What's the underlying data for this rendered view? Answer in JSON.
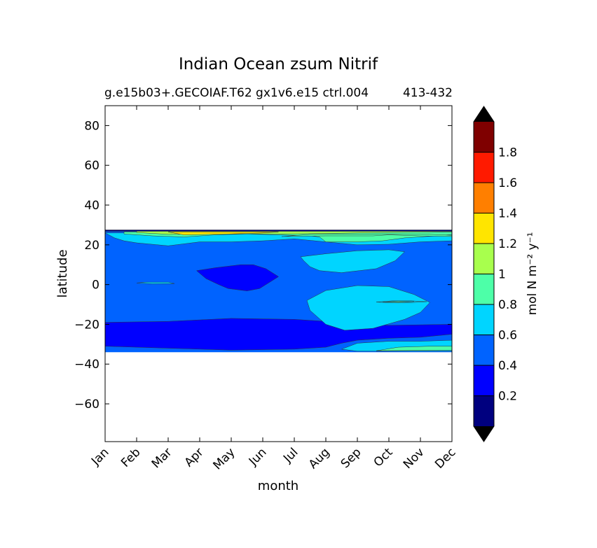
{
  "chart_data": {
    "type": "heatmap",
    "title": "Indian Ocean zsum Nitrif",
    "subtitle": "g.e15b03+.GECOIAF.T62 gx1v6.e15 ctrl.004",
    "subtitle_right": "413-432",
    "xlabel": "month",
    "ylabel": "latitude",
    "x_ticks": [
      "Jan",
      "Feb",
      "Mar",
      "Apr",
      "May",
      "Jun",
      "Jul",
      "Aug",
      "Sep",
      "Oct",
      "Nov",
      "Dec"
    ],
    "y_ticks": [
      80,
      60,
      40,
      20,
      0,
      -20,
      -40,
      -60
    ],
    "ylim": [
      -79,
      90
    ],
    "data_lat_range": [
      -34,
      27.5
    ],
    "colorbar": {
      "label": "mol N m⁻² y⁻¹",
      "levels": [
        0,
        0.2,
        0.4,
        0.6,
        0.8,
        1.0,
        1.2,
        1.4,
        1.6,
        1.8,
        2.0
      ],
      "tick_labels": [
        "0.2",
        "0.4",
        "0.6",
        "0.8",
        "1",
        "1.2",
        "1.4",
        "1.6",
        "1.8"
      ],
      "colors": [
        "#00007f",
        "#0000ff",
        "#0063ff",
        "#00d5ff",
        "#4dffa8",
        "#a8ff4d",
        "#ffe500",
        "#ff7f00",
        "#ff1a00",
        "#7f0000"
      ],
      "extend_colors": [
        "#000000",
        "#000000"
      ]
    },
    "grid": false,
    "legend": "none",
    "regions": [
      {
        "value_class": 2,
        "description": "background field",
        "polygon": [
          [
            0,
            27.5
          ],
          [
            11,
            27.5
          ],
          [
            11,
            -34
          ],
          [
            0,
            -34
          ]
        ]
      },
      {
        "value_class": 1,
        "polygon": [
          [
            0,
            -19
          ],
          [
            2,
            -18.5
          ],
          [
            4,
            -17
          ],
          [
            6,
            -17.5
          ],
          [
            8,
            -19.5
          ],
          [
            9,
            -20.5
          ],
          [
            11,
            -20
          ],
          [
            11,
            -25
          ],
          [
            10,
            -26.5
          ],
          [
            9,
            -27
          ],
          [
            8,
            -28
          ],
          [
            7.5,
            -29.5
          ],
          [
            7,
            -31.5
          ],
          [
            6,
            -32.5
          ],
          [
            4,
            -33
          ],
          [
            2,
            -32
          ],
          [
            0,
            -31
          ]
        ]
      },
      {
        "value_class": 1,
        "polygon": [
          [
            2.9,
            7
          ],
          [
            3.5,
            8.5
          ],
          [
            4.3,
            10
          ],
          [
            4.7,
            10
          ],
          [
            5.1,
            8
          ],
          [
            5.5,
            4
          ],
          [
            5.2,
            1
          ],
          [
            4.9,
            -2
          ],
          [
            4.5,
            -3.2
          ],
          [
            3.9,
            -2
          ],
          [
            3.6,
            0
          ],
          [
            3.2,
            3
          ]
        ]
      },
      {
        "value_class": 3,
        "polygon": [
          [
            6.2,
            14
          ],
          [
            7,
            15.5
          ],
          [
            8,
            17
          ],
          [
            9,
            17.5
          ],
          [
            9.5,
            16.5
          ],
          [
            9.2,
            12
          ],
          [
            8.6,
            8
          ],
          [
            7.5,
            6
          ],
          [
            6.8,
            7
          ],
          [
            6.5,
            9
          ],
          [
            6.3,
            12
          ]
        ]
      },
      {
        "value_class": 3,
        "polygon": [
          [
            6.4,
            -8
          ],
          [
            7,
            -3
          ],
          [
            8,
            -0.5
          ],
          [
            9,
            -1
          ],
          [
            9.8,
            -5
          ],
          [
            10.3,
            -9
          ],
          [
            10,
            -14
          ],
          [
            9.5,
            -17.5
          ],
          [
            8.5,
            -22
          ],
          [
            7.6,
            -23
          ],
          [
            7,
            -20
          ],
          [
            6.5,
            -13
          ]
        ]
      },
      {
        "value_class": 3,
        "polygon": [
          [
            7.5,
            -32.5
          ],
          [
            8,
            -29.5
          ],
          [
            9,
            -28.5
          ],
          [
            10,
            -28.5
          ],
          [
            11,
            -28
          ],
          [
            11,
            -33.5
          ],
          [
            8,
            -33.5
          ]
        ]
      },
      {
        "value_class": 4,
        "polygon": [
          [
            8.6,
            -33.3
          ],
          [
            9.3,
            -31.5
          ],
          [
            10.3,
            -31
          ],
          [
            11,
            -31
          ],
          [
            11,
            -33
          ]
        ]
      },
      {
        "value_class": 3,
        "polygon": [
          [
            0,
            26
          ],
          [
            0.3,
            23.5
          ],
          [
            0.6,
            22
          ],
          [
            1,
            21
          ],
          [
            2,
            19.5
          ],
          [
            3,
            21.5
          ],
          [
            4,
            21.5
          ],
          [
            5,
            22
          ],
          [
            6,
            23
          ],
          [
            7,
            21.5
          ],
          [
            8,
            20
          ],
          [
            9,
            20.3
          ],
          [
            10,
            21.5
          ],
          [
            11,
            22
          ],
          [
            11,
            26
          ]
        ]
      },
      {
        "value_class": 4,
        "polygon": [
          [
            0.6,
            25.5
          ],
          [
            1.5,
            24.5
          ],
          [
            2.5,
            24
          ],
          [
            3.5,
            25
          ],
          [
            4.5,
            25.5
          ],
          [
            5.5,
            25
          ],
          [
            6.5,
            24.5
          ],
          [
            6.8,
            24
          ],
          [
            7,
            21.5
          ],
          [
            8,
            21.5
          ],
          [
            8.8,
            22
          ],
          [
            9.5,
            23.5
          ],
          [
            10.5,
            24.5
          ],
          [
            11,
            25.2
          ],
          [
            11,
            26.5
          ],
          [
            0.6,
            26.5
          ]
        ]
      },
      {
        "value_class": 5,
        "polygon": [
          [
            1,
            26.2
          ],
          [
            2,
            25.3
          ],
          [
            4,
            25.5
          ],
          [
            6,
            25.5
          ],
          [
            8,
            26
          ],
          [
            11,
            26.6
          ],
          [
            11,
            27
          ],
          [
            1,
            27
          ]
        ]
      },
      {
        "value_class": 6,
        "polygon": [
          [
            2,
            26.5
          ],
          [
            2.5,
            25
          ],
          [
            4,
            25.5
          ],
          [
            5,
            26
          ],
          [
            5.5,
            26.5
          ]
        ]
      },
      {
        "value_class": 4,
        "polygon": [
          [
            5.6,
            24.2
          ],
          [
            7,
            24.5
          ],
          [
            8.5,
            24.5
          ],
          [
            9,
            25
          ],
          [
            10,
            24.5
          ],
          [
            11,
            24.2
          ],
          [
            11,
            24.8
          ],
          [
            10,
            25.5
          ],
          [
            8,
            25.4
          ],
          [
            6.5,
            25.2
          ]
        ]
      },
      {
        "value_class": 3,
        "polygon": [
          [
            8.6,
            -8.8
          ],
          [
            9.1,
            -8.2
          ],
          [
            9.7,
            -8.2
          ],
          [
            10.2,
            -8.6
          ],
          [
            9.5,
            -9.2
          ],
          [
            9,
            -9.1
          ]
        ]
      },
      {
        "value_class": 4,
        "polygon": [
          [
            8.8,
            -8.7
          ],
          [
            9.3,
            -8.4
          ],
          [
            9.8,
            -8.5
          ],
          [
            9.3,
            -8.9
          ]
        ]
      },
      {
        "value_class": 3,
        "polygon": [
          [
            1,
            0.8
          ],
          [
            1.3,
            1.2
          ],
          [
            2,
            1.2
          ],
          [
            2.2,
            0.5
          ],
          [
            1.5,
            0.4
          ]
        ]
      },
      {
        "value_class": 0,
        "polygon": [
          [
            0,
            27.5
          ],
          [
            11,
            27.5
          ],
          [
            11,
            26.8
          ],
          [
            0,
            26.8
          ]
        ]
      }
    ]
  }
}
